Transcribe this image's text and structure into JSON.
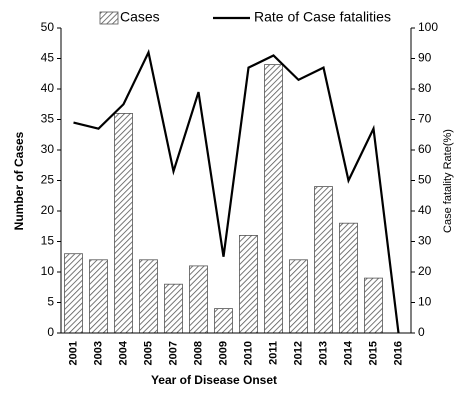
{
  "chart_data": {
    "type": "bar_line",
    "x_label": "Year of Disease Onset",
    "y_label": "Number of Cases",
    "y2_label": "Case fatality Rate(%)",
    "categories": [
      "2001",
      "2003",
      "2004",
      "2005",
      "2007",
      "2008",
      "2009",
      "2010",
      "2011",
      "2012",
      "2013",
      "2014",
      "2015",
      "2016"
    ],
    "series": [
      {
        "name": "Cases",
        "type": "bar",
        "color": "#555555",
        "axis": "y",
        "values": [
          13,
          12,
          36,
          12,
          8,
          11,
          4,
          16,
          44,
          12,
          24,
          18,
          9,
          0
        ]
      },
      {
        "name": "Rate of Case fatalities",
        "type": "line",
        "color": "#000000",
        "axis": "y2",
        "values": [
          69,
          67,
          75,
          92,
          53,
          79,
          25,
          87,
          91,
          83,
          87,
          50,
          67,
          0
        ]
      }
    ],
    "ylim": [
      0,
      50
    ],
    "yticks": [
      0,
      5,
      10,
      15,
      20,
      25,
      30,
      35,
      40,
      45,
      50
    ],
    "y2lim": [
      0,
      100
    ],
    "y2ticks": [
      0,
      10,
      20,
      30,
      40,
      50,
      60,
      70,
      80,
      90,
      100
    ]
  }
}
